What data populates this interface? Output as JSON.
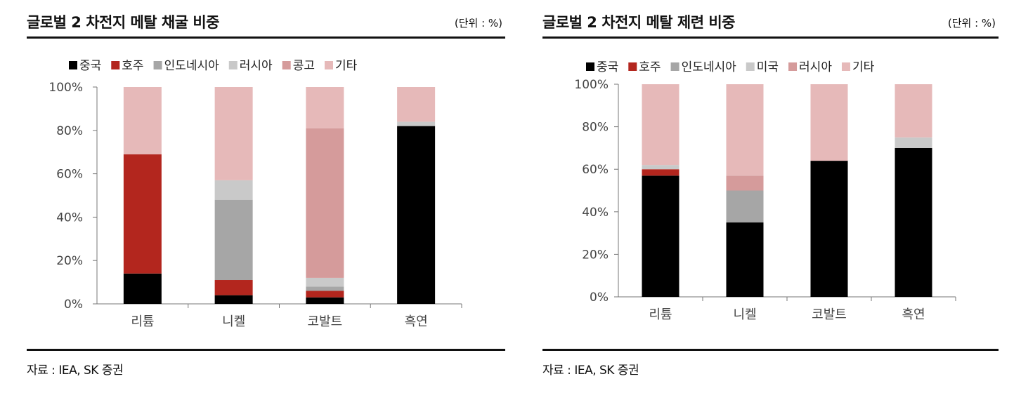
{
  "panels": [
    {
      "title": "글로벌 2 차전지 메탈 채굴 비중",
      "unit": "(단위 : %)",
      "source": "자료 : IEA, SK 증권"
    },
    {
      "title": "글로벌 2 차전지 메탈 제련 비중",
      "unit": "(단위 : %)",
      "source": "자료 : IEA, SK 증권"
    }
  ],
  "chart_data": [
    {
      "type": "bar",
      "stacked": true,
      "title": "글로벌 2 차전지 메탈 채굴 비중",
      "categories": [
        "리튬",
        "니켈",
        "코발트",
        "흑연"
      ],
      "ylim": [
        0,
        100
      ],
      "yticks": [
        "0%",
        "20%",
        "40%",
        "60%",
        "80%",
        "100%"
      ],
      "legend_position": "top",
      "grid": false,
      "series": [
        {
          "name": "중국",
          "color": "#000000",
          "values": [
            14,
            4,
            3,
            82
          ]
        },
        {
          "name": "호주",
          "color": "#b3261e",
          "values": [
            55,
            7,
            3,
            0
          ]
        },
        {
          "name": "인도네시아",
          "color": "#a6a6a6",
          "values": [
            0,
            37,
            2,
            0
          ]
        },
        {
          "name": "러시아",
          "color": "#c9c9c9",
          "values": [
            0,
            9,
            4,
            2
          ]
        },
        {
          "name": "콩고",
          "color": "#d59b9b",
          "values": [
            0,
            0,
            69,
            0
          ]
        },
        {
          "name": "기타",
          "color": "#e6b9b9",
          "values": [
            31,
            43,
            19,
            16
          ]
        }
      ]
    },
    {
      "type": "bar",
      "stacked": true,
      "title": "글로벌 2 차전지 메탈 제련 비중",
      "categories": [
        "리튬",
        "니켈",
        "코발트",
        "흑연"
      ],
      "ylim": [
        0,
        100
      ],
      "yticks": [
        "0%",
        "20%",
        "40%",
        "60%",
        "80%",
        "100%"
      ],
      "legend_position": "top",
      "grid": false,
      "series": [
        {
          "name": "중국",
          "color": "#000000",
          "values": [
            57,
            35,
            64,
            70
          ]
        },
        {
          "name": "호주",
          "color": "#b3261e",
          "values": [
            3,
            0,
            0,
            0
          ]
        },
        {
          "name": "인도네시아",
          "color": "#a6a6a6",
          "values": [
            0,
            15,
            0,
            0
          ]
        },
        {
          "name": "미국",
          "color": "#c9c9c9",
          "values": [
            2,
            0,
            0,
            5
          ]
        },
        {
          "name": "러시아",
          "color": "#d59b9b",
          "values": [
            0,
            7,
            0,
            0
          ]
        },
        {
          "name": "기타",
          "color": "#e6b9b9",
          "values": [
            38,
            43,
            36,
            25
          ]
        }
      ]
    }
  ]
}
